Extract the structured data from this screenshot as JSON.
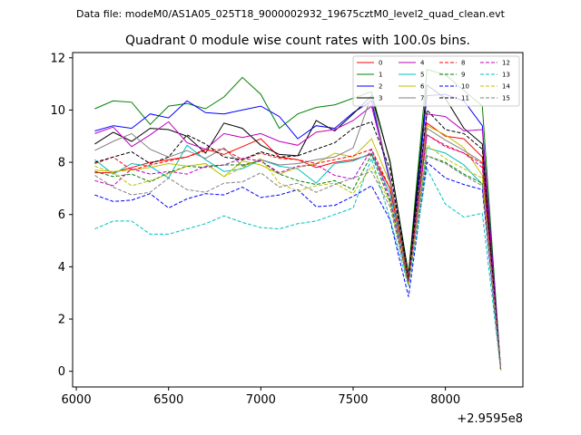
{
  "chart_data": {
    "type": "line",
    "suptitle": "Data file: modeM0/AS1A05_025T18_9000002932_19675cztM0_level2_quad_clean.evt",
    "title": "Quadrant 0 module wise count rates with 100.0s bins.",
    "xlabel": "",
    "ylabel": "",
    "offset_text": "+2.9595e8",
    "xlim": [
      5980,
      8420
    ],
    "ylim": [
      -0.6,
      12.2
    ],
    "xticks": [
      6000,
      6500,
      7000,
      7500,
      8000
    ],
    "yticks": [
      0,
      2,
      4,
      6,
      8,
      10,
      12
    ],
    "legend_loc": "upper right",
    "x": [
      6100,
      6200,
      6300,
      6400,
      6500,
      6600,
      6700,
      6800,
      6900,
      7000,
      7100,
      7200,
      7300,
      7400,
      7500,
      7600,
      7700,
      7800,
      7900,
      8000,
      8100,
      8200,
      8300
    ],
    "series": [
      {
        "name": "0",
        "color": "#ff0000",
        "dash": "solid",
        "values": [
          7.6,
          7.6,
          7.8,
          8.0,
          8.1,
          8.2,
          8.5,
          8.3,
          8.6,
          8.9,
          8.2,
          8.1,
          7.8,
          8.0,
          8.1,
          8.3,
          7.0,
          3.6,
          9.5,
          9.0,
          8.9,
          8.2,
          0.05
        ]
      },
      {
        "name": "1",
        "color": "#008000",
        "dash": "solid",
        "values": [
          10.05,
          10.35,
          10.3,
          9.45,
          10.15,
          10.25,
          10.05,
          10.5,
          11.25,
          10.6,
          9.3,
          9.85,
          10.1,
          10.2,
          10.45,
          10.7,
          8.0,
          3.75,
          11.55,
          11.35,
          10.75,
          10.15,
          0.05
        ]
      },
      {
        "name": "2",
        "color": "#0000ff",
        "dash": "solid",
        "values": [
          9.2,
          9.4,
          9.3,
          9.85,
          9.7,
          10.35,
          9.9,
          9.85,
          10.0,
          10.15,
          9.75,
          8.9,
          9.4,
          9.3,
          9.9,
          10.35,
          7.2,
          3.55,
          10.55,
          10.6,
          10.35,
          9.4,
          0.05
        ]
      },
      {
        "name": "3",
        "color": "#000000",
        "dash": "solid",
        "values": [
          8.7,
          9.15,
          8.8,
          9.3,
          9.25,
          9.0,
          8.35,
          9.5,
          9.3,
          8.65,
          8.3,
          8.25,
          9.6,
          9.2,
          9.85,
          10.55,
          8.05,
          3.65,
          10.95,
          10.45,
          9.3,
          8.7,
          0.05
        ]
      },
      {
        "name": "4",
        "color": "#bf00bf",
        "dash": "solid",
        "values": [
          9.1,
          9.35,
          8.6,
          9.05,
          9.55,
          8.75,
          8.5,
          9.1,
          8.95,
          9.1,
          8.8,
          8.65,
          9.15,
          9.25,
          9.6,
          10.15,
          7.4,
          3.6,
          9.85,
          9.75,
          9.2,
          9.25,
          0.05
        ]
      },
      {
        "name": "5",
        "color": "#00bfbf",
        "dash": "solid",
        "values": [
          8.1,
          7.55,
          7.95,
          7.85,
          7.4,
          8.65,
          8.1,
          7.65,
          7.75,
          8.1,
          7.85,
          7.75,
          7.2,
          7.95,
          8.05,
          8.35,
          6.8,
          3.35,
          8.55,
          8.35,
          7.9,
          7.15,
          0.05
        ]
      },
      {
        "name": "6",
        "color": "#bfbf00",
        "dash": "solid",
        "values": [
          7.7,
          7.65,
          7.7,
          7.8,
          7.95,
          7.85,
          7.95,
          7.45,
          8.05,
          7.9,
          7.55,
          7.8,
          7.95,
          8.35,
          8.2,
          8.9,
          7.2,
          3.5,
          9.4,
          9.05,
          8.55,
          7.5,
          0.05
        ]
      },
      {
        "name": "7",
        "color": "#808080",
        "dash": "solid",
        "values": [
          8.45,
          8.8,
          9.1,
          8.5,
          8.2,
          8.45,
          8.15,
          8.55,
          7.85,
          8.1,
          7.9,
          7.95,
          8.1,
          8.2,
          8.55,
          10.55,
          7.3,
          3.6,
          9.3,
          8.85,
          8.45,
          8.0,
          0.05
        ]
      },
      {
        "name": "8",
        "color": "#ff0000",
        "dash": "dashed",
        "values": [
          7.95,
          8.2,
          7.7,
          7.9,
          8.05,
          8.2,
          8.45,
          8.5,
          8.1,
          8.35,
          8.15,
          8.1,
          7.95,
          8.1,
          8.25,
          8.5,
          7.0,
          3.55,
          9.05,
          8.65,
          8.35,
          7.95,
          0.05
        ]
      },
      {
        "name": "9",
        "color": "#008000",
        "dash": "dashed",
        "values": [
          7.65,
          7.45,
          7.55,
          7.25,
          7.6,
          7.85,
          7.8,
          7.9,
          7.9,
          8.05,
          7.55,
          7.3,
          7.15,
          7.3,
          6.95,
          8.3,
          6.5,
          3.4,
          8.25,
          8.0,
          7.55,
          7.2,
          0.05
        ]
      },
      {
        "name": "10",
        "color": "#0000ff",
        "dash": "dashed",
        "values": [
          6.75,
          6.5,
          6.55,
          6.8,
          6.25,
          6.6,
          6.8,
          6.75,
          7.05,
          6.65,
          6.75,
          6.95,
          6.3,
          6.35,
          6.7,
          7.1,
          5.8,
          2.85,
          8.0,
          7.4,
          7.15,
          6.95,
          0.05
        ]
      },
      {
        "name": "11",
        "color": "#000000",
        "dash": "dashed",
        "values": [
          8.0,
          8.2,
          8.4,
          7.95,
          8.2,
          9.05,
          8.7,
          8.2,
          8.1,
          8.4,
          8.2,
          8.25,
          8.5,
          8.75,
          9.3,
          9.55,
          7.75,
          3.45,
          10.0,
          9.25,
          9.1,
          8.5,
          0.05
        ]
      },
      {
        "name": "12",
        "color": "#bf00bf",
        "dash": "dashed",
        "values": [
          7.3,
          7.1,
          7.75,
          7.55,
          7.65,
          7.55,
          7.85,
          7.9,
          8.15,
          8.05,
          7.6,
          7.85,
          7.9,
          7.5,
          7.35,
          8.5,
          6.6,
          3.35,
          9.05,
          8.6,
          8.35,
          7.8,
          0.05
        ]
      },
      {
        "name": "13",
        "color": "#00bfbf",
        "dash": "dashed",
        "values": [
          5.45,
          5.75,
          5.75,
          5.25,
          5.25,
          5.45,
          5.65,
          5.95,
          5.7,
          5.5,
          5.45,
          5.65,
          5.75,
          6.0,
          6.25,
          8.15,
          5.85,
          3.25,
          7.75,
          6.4,
          5.9,
          6.05,
          0.05
        ]
      },
      {
        "name": "14",
        "color": "#bfbf00",
        "dash": "dashed",
        "values": [
          7.85,
          7.6,
          7.1,
          7.3,
          7.55,
          7.85,
          7.95,
          7.45,
          7.8,
          8.15,
          7.2,
          6.9,
          7.1,
          7.2,
          6.8,
          7.85,
          6.45,
          3.3,
          8.65,
          8.15,
          7.75,
          7.4,
          0.05
        ]
      },
      {
        "name": "15",
        "color": "#808080",
        "dash": "dashed",
        "values": [
          7.5,
          7.05,
          6.75,
          6.85,
          7.4,
          6.95,
          6.85,
          7.2,
          7.25,
          7.6,
          7.05,
          7.2,
          6.85,
          7.15,
          7.4,
          7.65,
          6.3,
          3.3,
          8.25,
          7.95,
          7.5,
          7.1,
          0.05
        ]
      }
    ]
  }
}
